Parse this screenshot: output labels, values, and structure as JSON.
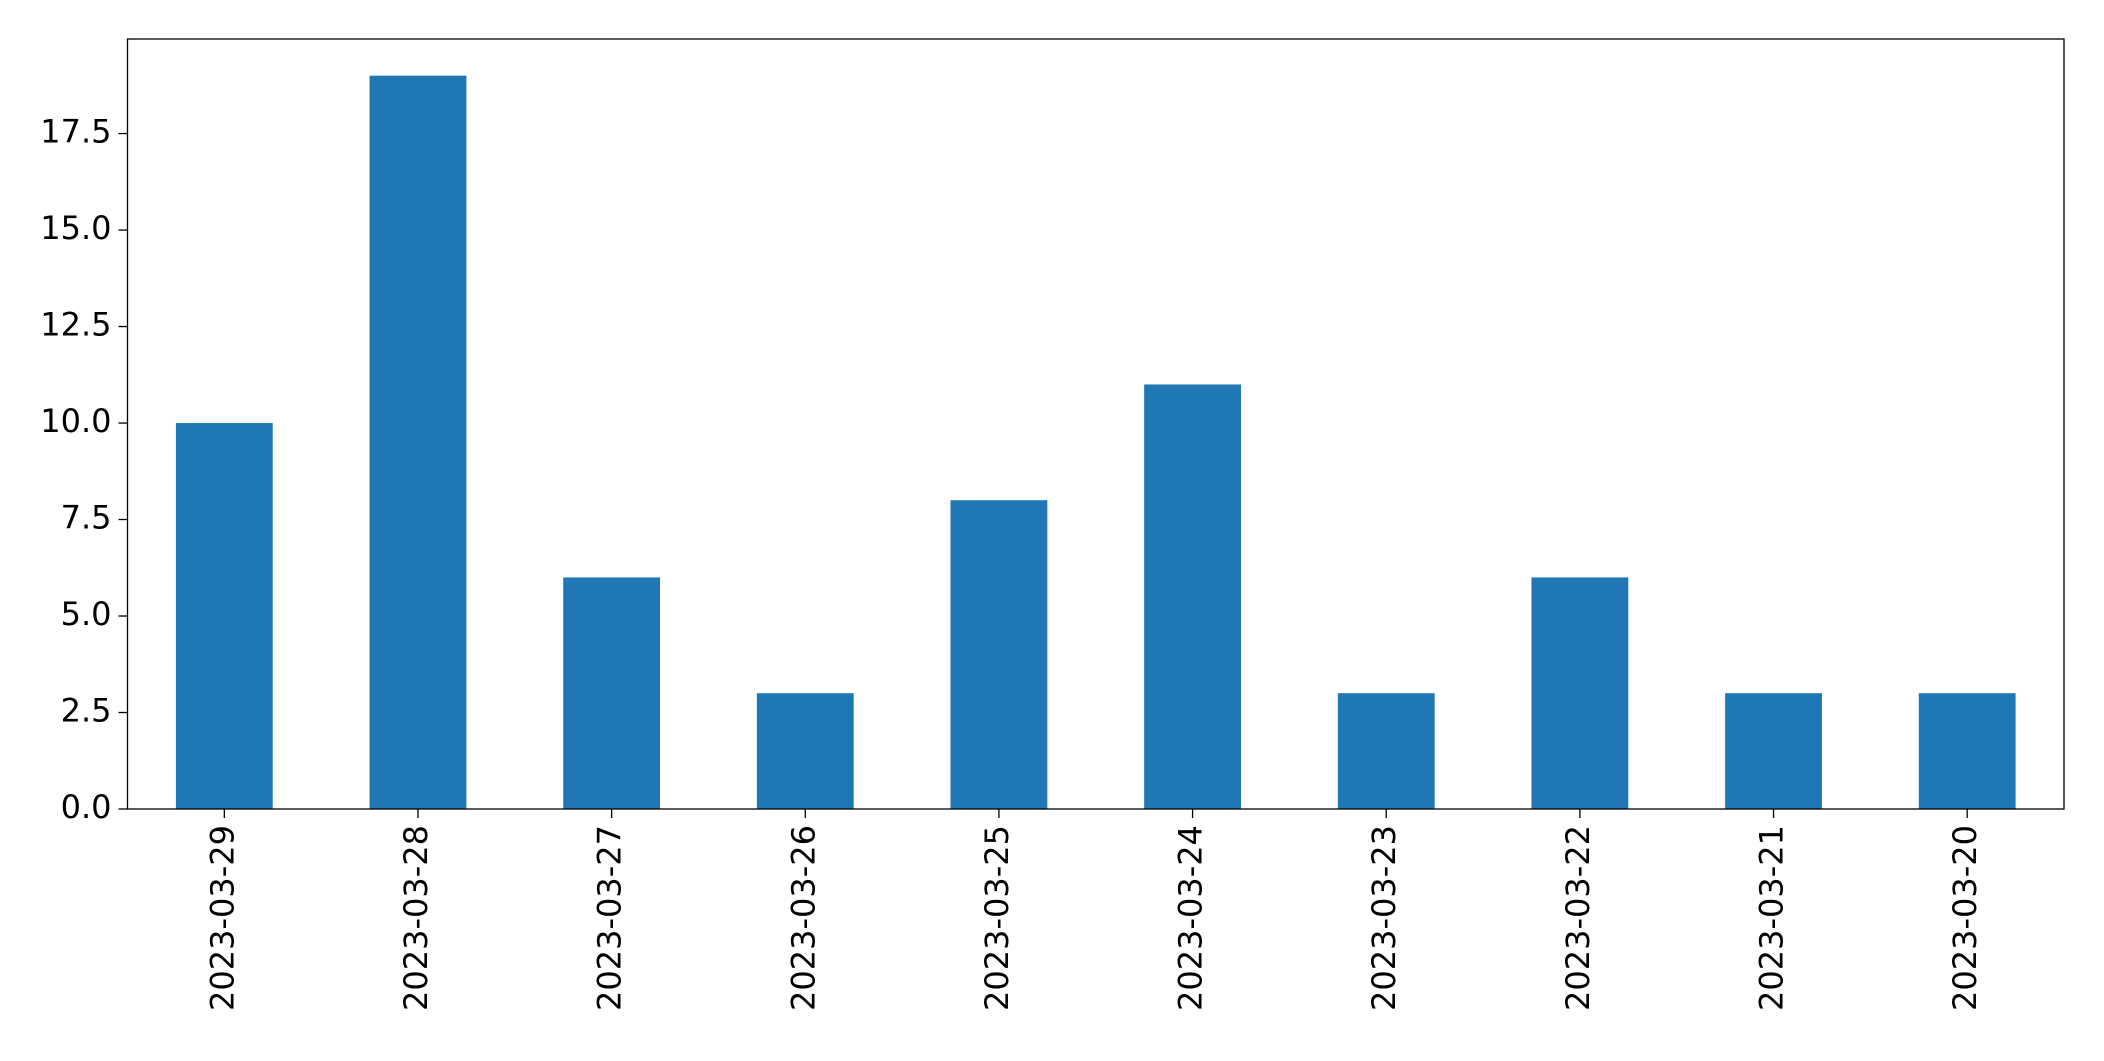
{
  "chart_data": {
    "type": "bar",
    "categories": [
      "2023-03-29",
      "2023-03-28",
      "2023-03-27",
      "2023-03-26",
      "2023-03-25",
      "2023-03-24",
      "2023-03-23",
      "2023-03-22",
      "2023-03-21",
      "2023-03-20"
    ],
    "values": [
      10,
      19,
      6,
      3,
      8,
      11,
      3,
      6,
      3,
      3
    ],
    "color": "#1f77b4",
    "ylim": [
      0,
      19.95
    ],
    "yticks": [
      {
        "value": 0,
        "label": "0.0"
      },
      2.5,
      {
        "value": 5,
        "label": "5.0"
      },
      7.5,
      {
        "value": 10,
        "label": "10.0"
      },
      12.5,
      {
        "value": 15,
        "label": "15.0"
      },
      17.5
    ],
    "grid": false
  }
}
